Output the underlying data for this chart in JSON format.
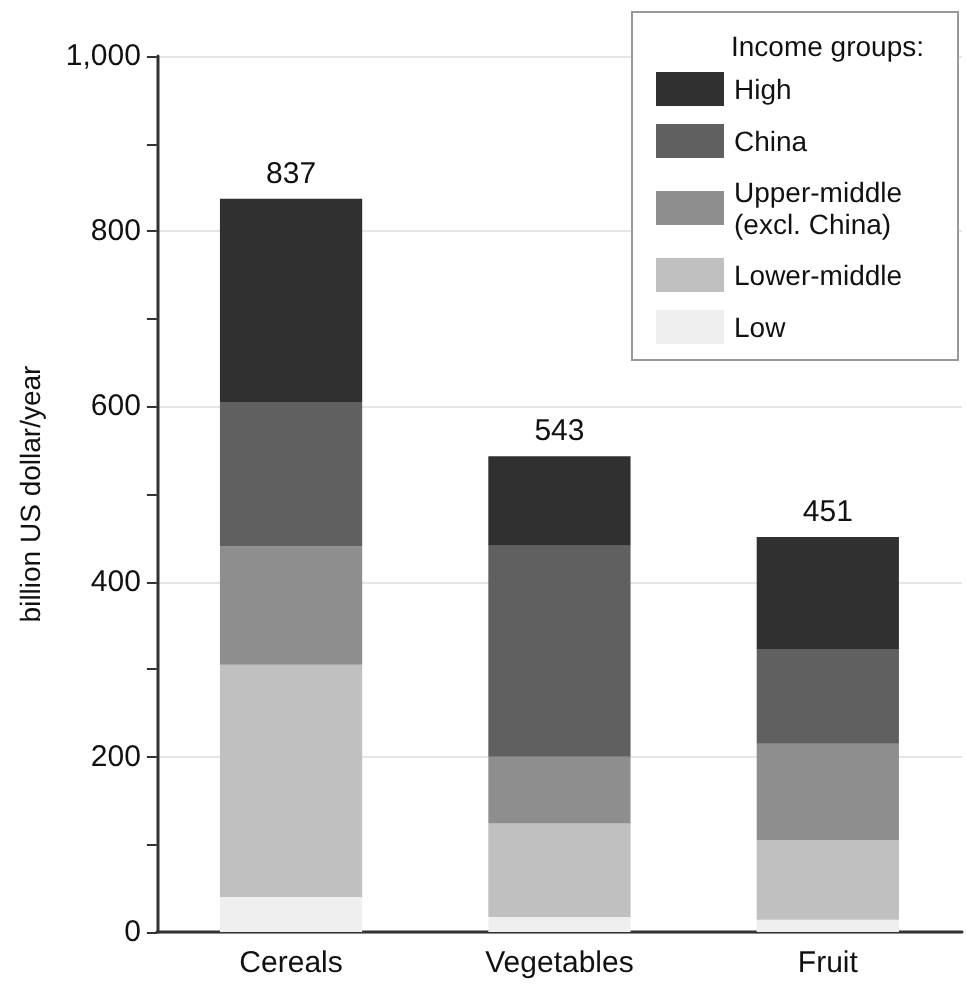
{
  "chart_data": {
    "type": "bar",
    "stacked": true,
    "ylabel": "billion US dollar/year",
    "legend_title": "Income groups:",
    "categories": [
      "Cereals",
      "Vegetables",
      "Fruit"
    ],
    "series": [
      {
        "name": "Low",
        "color": "#efefef",
        "values": [
          40,
          17,
          14
        ]
      },
      {
        "name": "Lower-middle",
        "color": "#c0c0c0",
        "values": [
          265,
          107,
          91
        ]
      },
      {
        "name": "Upper-middle (excl. China)",
        "color": "#8e8e8e",
        "values": [
          135,
          76,
          110
        ]
      },
      {
        "name": "China",
        "color": "#606060",
        "values": [
          165,
          241,
          108
        ]
      },
      {
        "name": "High",
        "color": "#303030",
        "values": [
          232,
          102,
          128
        ]
      }
    ],
    "totals": [
      "837",
      "543",
      "451"
    ],
    "ylim": [
      0,
      1000
    ],
    "yticks": [
      0,
      {
        "value": 100,
        "label": null
      },
      200,
      {
        "value": 300,
        "label": null
      },
      400,
      {
        "value": 500,
        "label": null
      },
      600,
      {
        "value": 700,
        "label": null
      },
      800,
      {
        "value": 900,
        "label": null
      },
      {
        "value": 1000,
        "label": "1,000"
      }
    ],
    "grid": "y",
    "legend": "top right"
  }
}
